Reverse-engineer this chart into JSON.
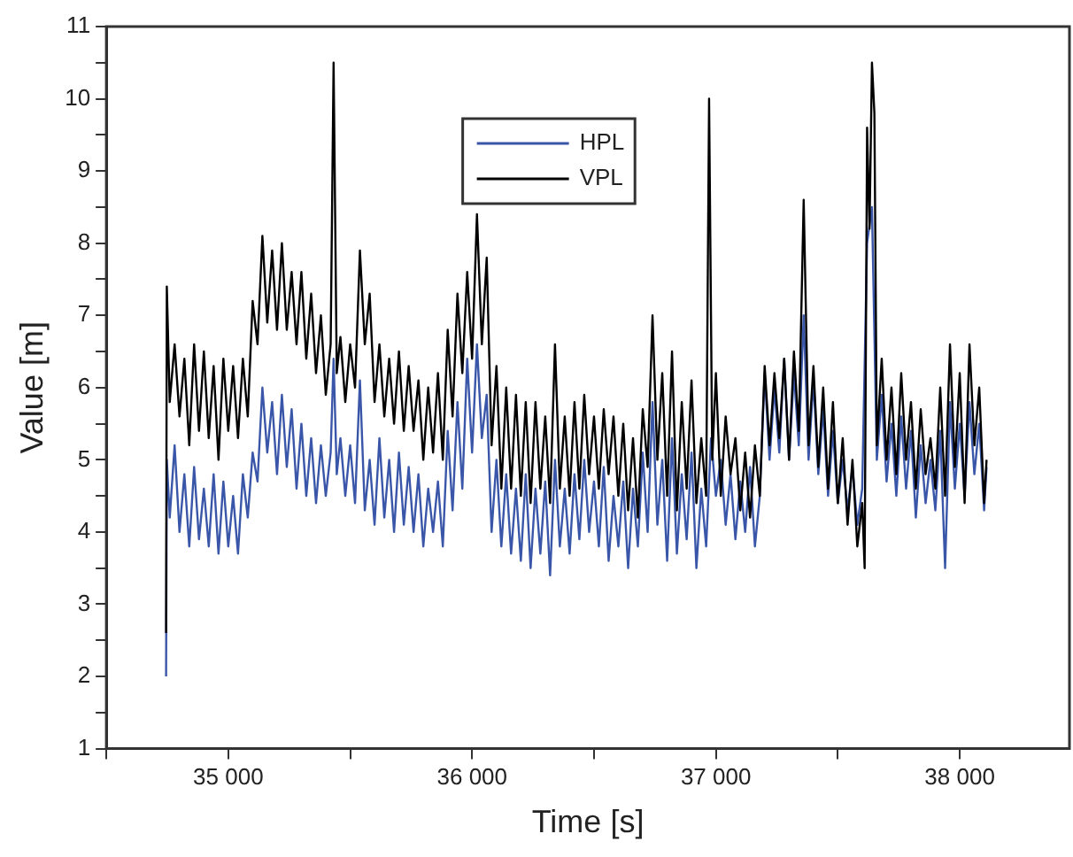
{
  "chart_data": {
    "type": "line",
    "xlabel": "Time [s]",
    "ylabel": "Value [m]",
    "xlim": [
      34500,
      38450
    ],
    "ylim": [
      1,
      11
    ],
    "xticks": [
      {
        "value": 34500,
        "label": null
      },
      {
        "value": 35000,
        "label": "35 000"
      },
      {
        "value": 35500,
        "label": null
      },
      {
        "value": 36000,
        "label": "36 000"
      },
      {
        "value": 36500,
        "label": null
      },
      {
        "value": 37000,
        "label": "37 000"
      },
      {
        "value": 37500,
        "label": null
      },
      {
        "value": 38000,
        "label": "38 000"
      }
    ],
    "yticks": [
      1,
      {
        "value": 1.5,
        "label": null
      },
      2,
      {
        "value": 2.5,
        "label": null
      },
      3,
      {
        "value": 3.5,
        "label": null
      },
      4,
      {
        "value": 4.5,
        "label": null
      },
      5,
      {
        "value": 5.5,
        "label": null
      },
      6,
      {
        "value": 6.5,
        "label": null
      },
      7,
      {
        "value": 7.5,
        "label": null
      },
      8,
      {
        "value": 8.5,
        "label": null
      },
      9,
      {
        "value": 9.5,
        "label": null
      },
      10,
      {
        "value": 10.5,
        "label": null
      },
      11
    ],
    "grid": false,
    "legend": "top",
    "marker": "none",
    "line_style": "solid",
    "series": [
      {
        "name": "HPL",
        "color": "#3a56a8",
        "x": [
          34745,
          34748,
          34760,
          34780,
          34800,
          34820,
          34840,
          34860,
          34880,
          34900,
          34920,
          34940,
          34960,
          34980,
          35000,
          35020,
          35040,
          35060,
          35080,
          35100,
          35120,
          35140,
          35160,
          35180,
          35200,
          35220,
          35240,
          35260,
          35280,
          35300,
          35320,
          35340,
          35360,
          35380,
          35400,
          35420,
          35432,
          35445,
          35460,
          35480,
          35500,
          35520,
          35540,
          35560,
          35580,
          35600,
          35620,
          35640,
          35660,
          35680,
          35700,
          35720,
          35740,
          35760,
          35780,
          35800,
          35820,
          35840,
          35860,
          35880,
          35900,
          35920,
          35940,
          35960,
          35980,
          36000,
          36020,
          36040,
          36060,
          36080,
          36100,
          36120,
          36140,
          36160,
          36180,
          36200,
          36220,
          36240,
          36260,
          36280,
          36300,
          36320,
          36340,
          36360,
          36380,
          36400,
          36420,
          36440,
          36460,
          36480,
          36500,
          36520,
          36540,
          36560,
          36580,
          36600,
          36620,
          36640,
          36660,
          36680,
          36700,
          36720,
          36740,
          36760,
          36780,
          36800,
          36820,
          36840,
          36860,
          36880,
          36900,
          36920,
          36940,
          36960,
          36980,
          37000,
          37020,
          37040,
          37060,
          37080,
          37100,
          37120,
          37140,
          37160,
          37180,
          37200,
          37220,
          37240,
          37260,
          37280,
          37300,
          37320,
          37340,
          37360,
          37380,
          37400,
          37420,
          37440,
          37460,
          37480,
          37500,
          37520,
          37540,
          37560,
          37580,
          37600,
          37620,
          37640,
          37660,
          37680,
          37700,
          37720,
          37740,
          37760,
          37780,
          37800,
          37820,
          37840,
          37860,
          37880,
          37900,
          37920,
          37940,
          37960,
          37980,
          38000,
          38020,
          38040,
          38060,
          38080,
          38100,
          38110
        ],
        "values": [
          2.0,
          5.0,
          4.2,
          5.2,
          4.0,
          4.8,
          3.8,
          4.9,
          3.9,
          4.6,
          3.8,
          4.8,
          3.7,
          4.7,
          3.8,
          4.5,
          3.7,
          4.8,
          4.2,
          5.1,
          4.7,
          6.0,
          5.1,
          5.8,
          4.8,
          5.9,
          4.9,
          5.7,
          4.6,
          5.5,
          4.5,
          5.3,
          4.4,
          5.2,
          4.5,
          5.1,
          6.4,
          4.8,
          5.3,
          4.5,
          5.2,
          4.4,
          6.1,
          4.3,
          5.0,
          4.1,
          5.3,
          4.2,
          5.0,
          4.0,
          5.1,
          4.1,
          4.9,
          4.0,
          4.8,
          3.8,
          4.6,
          4.0,
          4.7,
          3.8,
          5.4,
          4.3,
          5.8,
          4.6,
          6.4,
          5.1,
          6.6,
          5.3,
          5.9,
          4.0,
          5.0,
          3.8,
          4.8,
          3.7,
          4.6,
          3.6,
          4.8,
          3.5,
          4.6,
          3.7,
          4.7,
          3.4,
          5.0,
          3.8,
          4.6,
          3.7,
          4.8,
          3.9,
          5.0,
          4.0,
          4.7,
          3.8,
          4.9,
          3.6,
          4.5,
          3.8,
          4.7,
          3.5,
          4.6,
          3.8,
          5.1,
          4.0,
          5.8,
          4.1,
          5.0,
          3.6,
          5.3,
          3.7,
          4.8,
          3.9,
          5.1,
          3.5,
          4.6,
          3.8,
          5.3,
          4.5,
          5.0,
          4.1,
          4.8,
          3.9,
          4.7,
          4.0,
          4.9,
          3.8,
          4.5,
          6.2,
          5.0,
          6.0,
          5.1,
          6.4,
          5.0,
          6.2,
          5.2,
          7.0,
          5.0,
          6.1,
          4.8,
          5.7,
          4.5,
          5.4,
          4.4,
          5.0,
          4.3,
          4.9,
          4.1,
          4.6,
          8.0,
          8.5,
          5.0,
          5.9,
          4.7,
          5.5,
          4.5,
          5.6,
          4.6,
          5.4,
          4.2,
          5.2,
          4.4,
          5.0,
          4.3,
          5.4,
          3.5,
          5.8,
          4.6,
          5.5,
          4.5,
          5.8,
          4.8,
          5.5,
          4.3,
          4.9
        ]
      },
      {
        "name": "VPL",
        "color": "#000000",
        "x": [
          34745,
          34748,
          34760,
          34780,
          34800,
          34820,
          34840,
          34860,
          34880,
          34900,
          34920,
          34940,
          34960,
          34980,
          35000,
          35020,
          35040,
          35060,
          35080,
          35100,
          35120,
          35140,
          35160,
          35180,
          35200,
          35220,
          35240,
          35260,
          35280,
          35300,
          35320,
          35340,
          35360,
          35380,
          35400,
          35420,
          35432,
          35445,
          35460,
          35480,
          35500,
          35520,
          35540,
          35560,
          35580,
          35600,
          35620,
          35640,
          35660,
          35680,
          35700,
          35720,
          35740,
          35760,
          35780,
          35800,
          35820,
          35840,
          35860,
          35880,
          35900,
          35920,
          35940,
          35960,
          35980,
          36000,
          36020,
          36040,
          36060,
          36080,
          36100,
          36120,
          36140,
          36160,
          36180,
          36200,
          36220,
          36240,
          36260,
          36280,
          36300,
          36320,
          36340,
          36360,
          36380,
          36400,
          36420,
          36440,
          36460,
          36480,
          36500,
          36520,
          36540,
          36560,
          36580,
          36600,
          36620,
          36640,
          36660,
          36680,
          36700,
          36720,
          36740,
          36760,
          36780,
          36800,
          36820,
          36840,
          36860,
          36880,
          36900,
          36920,
          36940,
          36960,
          36972,
          36985,
          37000,
          37020,
          37040,
          37060,
          37080,
          37100,
          37120,
          37140,
          37160,
          37180,
          37200,
          37220,
          37240,
          37260,
          37280,
          37300,
          37320,
          37340,
          37360,
          37380,
          37400,
          37420,
          37440,
          37460,
          37480,
          37500,
          37520,
          37540,
          37560,
          37580,
          37600,
          37610,
          37620,
          37630,
          37640,
          37650,
          37660,
          37680,
          37700,
          37720,
          37740,
          37760,
          37780,
          37800,
          37820,
          37840,
          37860,
          37880,
          37900,
          37920,
          37940,
          37960,
          37980,
          38000,
          38020,
          38040,
          38060,
          38080,
          38100,
          38110
        ],
        "values": [
          2.6,
          7.4,
          5.8,
          6.6,
          5.6,
          6.4,
          5.2,
          6.6,
          5.4,
          6.5,
          5.3,
          6.3,
          5.0,
          6.4,
          5.4,
          6.3,
          5.3,
          6.4,
          5.6,
          7.2,
          6.6,
          8.1,
          6.9,
          7.9,
          6.8,
          8.0,
          6.8,
          7.6,
          6.6,
          7.6,
          6.4,
          7.3,
          6.2,
          7.0,
          5.9,
          6.6,
          10.5,
          6.2,
          6.7,
          5.8,
          6.6,
          6.0,
          7.9,
          6.6,
          7.3,
          5.8,
          6.6,
          5.6,
          6.4,
          5.5,
          6.5,
          5.4,
          6.3,
          5.4,
          6.1,
          5.0,
          6.0,
          5.1,
          6.2,
          5.0,
          6.8,
          5.6,
          7.3,
          6.2,
          7.6,
          6.4,
          8.4,
          6.6,
          7.8,
          5.2,
          6.3,
          4.6,
          6.0,
          4.6,
          5.9,
          4.5,
          5.8,
          4.4,
          5.8,
          4.6,
          5.6,
          4.4,
          6.6,
          4.6,
          5.6,
          4.5,
          5.8,
          4.6,
          5.9,
          4.8,
          5.6,
          4.6,
          5.7,
          4.8,
          5.6,
          4.5,
          5.5,
          4.3,
          5.3,
          4.2,
          5.7,
          4.9,
          7.0,
          5.0,
          6.2,
          4.5,
          6.5,
          4.3,
          5.8,
          4.6,
          6.1,
          4.4,
          5.3,
          4.5,
          10.0,
          5.0,
          6.2,
          4.5,
          5.6,
          4.8,
          5.3,
          4.3,
          5.1,
          4.2,
          5.2,
          4.5,
          6.3,
          5.2,
          6.2,
          5.3,
          6.4,
          5.0,
          6.5,
          5.4,
          8.6,
          5.2,
          6.3,
          4.9,
          6.0,
          4.6,
          5.8,
          4.4,
          5.3,
          4.1,
          5.0,
          3.8,
          4.4,
          3.5,
          9.6,
          8.2,
          10.5,
          9.8,
          5.2,
          6.4,
          5.0,
          6.0,
          4.8,
          6.2,
          5.0,
          5.8,
          4.6,
          5.7,
          4.8,
          5.3,
          4.6,
          6.0,
          4.5,
          6.6,
          4.9,
          6.2,
          4.4,
          6.6,
          5.2,
          6.0,
          4.4,
          5.0
        ]
      }
    ]
  }
}
